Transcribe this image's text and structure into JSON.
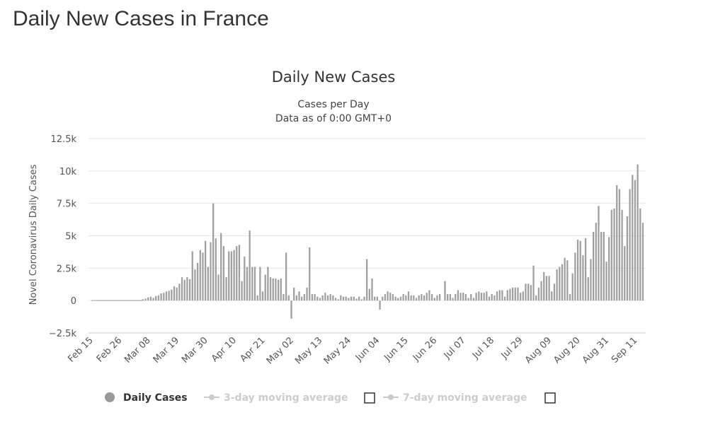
{
  "page": {
    "title": "Daily New Cases in France"
  },
  "chart_data": {
    "type": "bar",
    "title": "Daily New Cases",
    "subtitle_lines": [
      "Cases per Day",
      "Data as of 0:00 GMT+0"
    ],
    "ylabel": "Novel Coronavirus Daily Cases",
    "xlabel": "",
    "ylim": [
      -2500,
      12500
    ],
    "yticks": [
      -2500,
      0,
      2500,
      5000,
      7500,
      10000,
      12500
    ],
    "ytick_labels": [
      "−2.5k",
      "0",
      "2.5k",
      "5k",
      "7.5k",
      "10k",
      "12.5k"
    ],
    "x_start": "Feb 15",
    "xtick_labels": [
      "Feb 15",
      "Feb 26",
      "Mar 08",
      "Mar 19",
      "Mar 30",
      "Apr 10",
      "Apr 21",
      "May 02",
      "May 13",
      "May 24",
      "Jun 04",
      "Jun 15",
      "Jun 26",
      "Jul 07",
      "Jul 18",
      "Jul 29",
      "Aug 09",
      "Aug 20",
      "Aug 31",
      "Sep 11"
    ],
    "xtick_step_days": 11,
    "grid": true,
    "legend_position": "bottom",
    "bar_color": "#a0a0a0",
    "series": [
      {
        "name": "Daily Cases",
        "values": [
          0,
          0,
          0,
          0,
          0,
          0,
          0,
          0,
          0,
          0,
          0,
          0,
          0,
          0,
          0,
          0,
          0,
          0,
          0,
          100,
          150,
          250,
          300,
          200,
          350,
          400,
          550,
          600,
          700,
          750,
          850,
          1100,
          1000,
          1300,
          1800,
          1600,
          1800,
          1650,
          3800,
          2400,
          2900,
          3900,
          3700,
          4600,
          2600,
          4500,
          7500,
          4800,
          2000,
          5200,
          4200,
          1800,
          3800,
          3800,
          3900,
          4200,
          4300,
          1500,
          3400,
          2600,
          5400,
          2600,
          2600,
          400,
          2600,
          700,
          2000,
          2600,
          1800,
          1700,
          1700,
          1600,
          1700,
          500,
          3700,
          400,
          -1400,
          1000,
          400,
          700,
          300,
          500,
          1000,
          4100,
          500,
          500,
          300,
          200,
          400,
          600,
          400,
          500,
          400,
          200,
          100,
          400,
          300,
          300,
          200,
          300,
          300,
          150,
          300,
          100,
          300,
          3200,
          900,
          1700,
          300,
          300,
          -700,
          300,
          500,
          700,
          600,
          500,
          300,
          200,
          300,
          500,
          400,
          700,
          400,
          400,
          200,
          400,
          500,
          400,
          600,
          800,
          500,
          200,
          400,
          500,
          0,
          1500,
          500,
          500,
          200,
          500,
          800,
          600,
          600,
          500,
          200,
          500,
          200,
          600,
          700,
          600,
          600,
          700,
          300,
          500,
          400,
          700,
          800,
          800,
          300,
          800,
          900,
          1000,
          1000,
          1000,
          600,
          700,
          1300,
          1300,
          1200,
          2700,
          400,
          1000,
          1500,
          2200,
          1900,
          1900,
          700,
          1300,
          2400,
          2600,
          2800,
          3300,
          3100,
          500,
          2100,
          3700,
          4700,
          4600,
          3500,
          4800,
          1800,
          3200,
          5300,
          6000,
          7300,
          5300,
          5300,
          3000,
          4900,
          7000,
          7100,
          8900,
          8600,
          7000,
          4200,
          6500,
          8600,
          9700,
          9300,
          10500,
          7100,
          6000
        ]
      }
    ]
  },
  "legend": {
    "items": [
      {
        "label": "Daily Cases",
        "color": "#999999",
        "text_color": "#333333"
      },
      {
        "label": "3-day moving average",
        "color": "#cccccc",
        "text_color": "#cccccc"
      },
      {
        "label": "7-day moving average",
        "color": "#cccccc",
        "text_color": "#cccccc"
      }
    ]
  }
}
